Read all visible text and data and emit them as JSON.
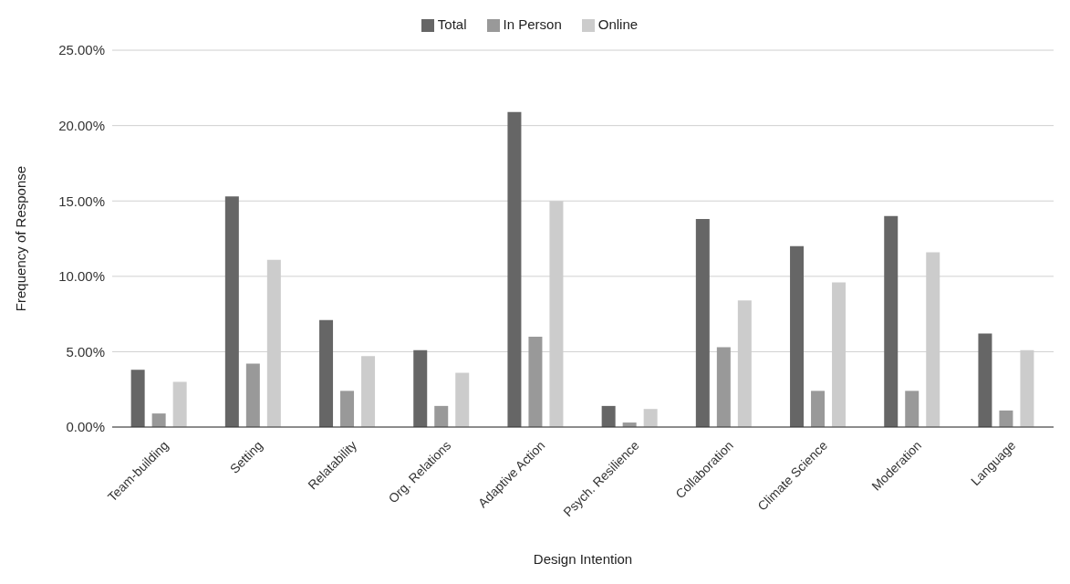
{
  "chart_data": {
    "type": "bar",
    "xlabel": "Design Intention",
    "ylabel": "Frequency of Response",
    "categories": [
      "Team-building",
      "Setting",
      "Relatability",
      "Org. Relations",
      "Adaptive Action",
      "Psych. Resilience",
      "Collaboration",
      "Climate Science",
      "Moderation",
      "Language"
    ],
    "series": [
      {
        "name": "Total",
        "color": "#666666",
        "values": [
          3.8,
          15.3,
          7.1,
          5.1,
          20.9,
          1.4,
          13.8,
          12.0,
          14.0,
          6.2
        ]
      },
      {
        "name": "In Person",
        "color": "#999999",
        "values": [
          0.9,
          4.2,
          2.4,
          1.4,
          6.0,
          0.3,
          5.3,
          2.4,
          2.4,
          1.1
        ]
      },
      {
        "name": "Online",
        "color": "#cccccc",
        "values": [
          3.0,
          11.1,
          4.7,
          3.6,
          15.0,
          1.2,
          8.4,
          9.6,
          11.6,
          5.1
        ]
      }
    ],
    "ylim": [
      0,
      25
    ],
    "yticks": [
      {
        "value": 0,
        "label": "0.00%"
      },
      {
        "value": 5,
        "label": "5.00%"
      },
      {
        "value": 10,
        "label": "10.00%"
      },
      {
        "value": 15,
        "label": "15.00%"
      },
      {
        "value": 20,
        "label": "20.00%"
      },
      {
        "value": 25,
        "label": "25.00%"
      }
    ],
    "grid": "y",
    "legend": "top"
  }
}
